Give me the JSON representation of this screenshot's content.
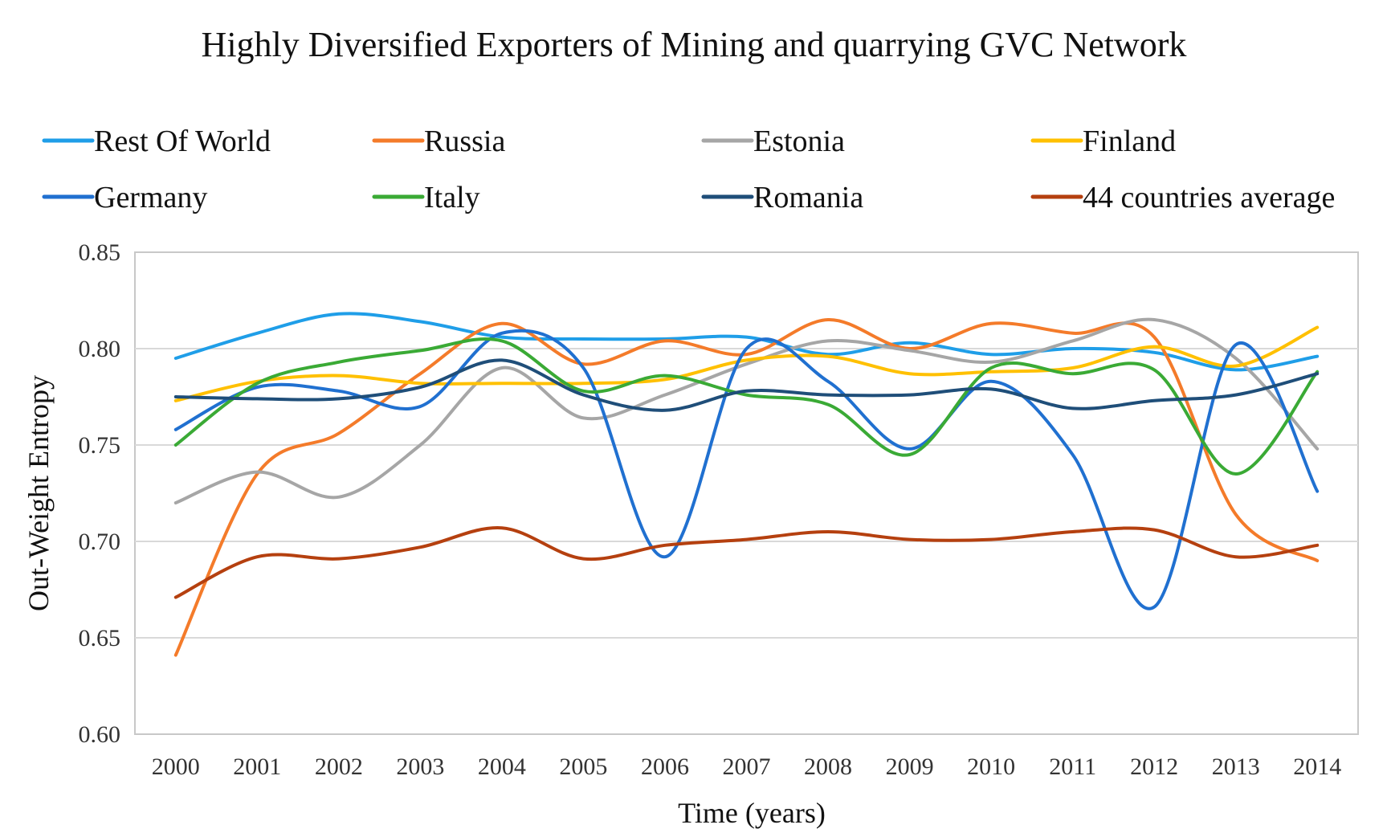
{
  "chart_data": {
    "type": "line",
    "title": "Highly Diversified Exporters of Mining and quarrying GVC Network",
    "xlabel": "Time (years)",
    "ylabel": "Out-Weight  Entropy",
    "ylim": [
      0.6,
      0.85
    ],
    "ytick_labels": [
      "0.60",
      "0.65",
      "0.70",
      "0.75",
      "0.80",
      "0.85"
    ],
    "categories": [
      "2000",
      "2001",
      "2002",
      "2003",
      "2004",
      "2005",
      "2006",
      "2007",
      "2008",
      "2009",
      "2010",
      "2011",
      "2012",
      "2013",
      "2014"
    ],
    "grid": true,
    "legend_position": "top",
    "series": [
      {
        "name": "Rest Of World",
        "color": "#1f9ee8",
        "values": [
          0.795,
          0.808,
          0.818,
          0.814,
          0.806,
          0.805,
          0.805,
          0.806,
          0.797,
          0.803,
          0.797,
          0.8,
          0.798,
          0.789,
          0.796
        ]
      },
      {
        "name": "Russia",
        "color": "#f47b2a",
        "values": [
          0.641,
          0.735,
          0.756,
          0.787,
          0.813,
          0.792,
          0.804,
          0.797,
          0.815,
          0.8,
          0.813,
          0.808,
          0.806,
          0.714,
          0.69
        ]
      },
      {
        "name": "Estonia",
        "color": "#a6a6a6",
        "values": [
          0.72,
          0.736,
          0.723,
          0.75,
          0.79,
          0.764,
          0.776,
          0.792,
          0.804,
          0.799,
          0.793,
          0.804,
          0.815,
          0.795,
          0.748
        ]
      },
      {
        "name": "Finland",
        "color": "#ffc000",
        "values": [
          0.773,
          0.783,
          0.786,
          0.782,
          0.782,
          0.782,
          0.784,
          0.794,
          0.796,
          0.787,
          0.788,
          0.79,
          0.801,
          0.791,
          0.811
        ]
      },
      {
        "name": "Germany",
        "color": "#2070d0",
        "values": [
          0.758,
          0.78,
          0.778,
          0.77,
          0.808,
          0.79,
          0.692,
          0.8,
          0.783,
          0.748,
          0.783,
          0.745,
          0.666,
          0.802,
          0.726
        ]
      },
      {
        "name": "Italy",
        "color": "#3aaa35",
        "values": [
          0.75,
          0.782,
          0.793,
          0.799,
          0.804,
          0.778,
          0.786,
          0.776,
          0.771,
          0.745,
          0.79,
          0.787,
          0.789,
          0.735,
          0.788
        ]
      },
      {
        "name": "Romania",
        "color": "#1f4e79",
        "values": [
          0.775,
          0.774,
          0.774,
          0.78,
          0.794,
          0.776,
          0.768,
          0.778,
          0.776,
          0.776,
          0.779,
          0.769,
          0.773,
          0.776,
          0.787
        ]
      },
      {
        "name": "44 countries average",
        "color": "#b5400f",
        "values": [
          0.671,
          0.692,
          0.691,
          0.697,
          0.707,
          0.691,
          0.698,
          0.701,
          0.705,
          0.701,
          0.701,
          0.705,
          0.706,
          0.692,
          0.698
        ]
      }
    ]
  }
}
